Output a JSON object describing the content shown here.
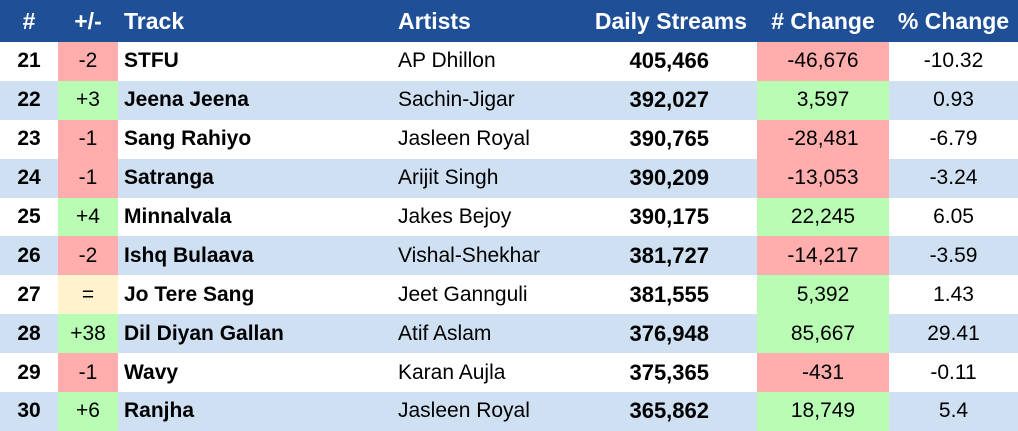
{
  "headers": {
    "rank": "#",
    "move": "+/-",
    "track": "Track",
    "artists": "Artists",
    "daily_streams": "Daily Streams",
    "num_change": "# Change",
    "pct_change": "% Change"
  },
  "status_colors": {
    "header_bg": "#1f4f96",
    "row_alt_bg": "#cfe0f3",
    "negative_bg": "#ffadad",
    "positive_bg": "#b9fcb4",
    "unchanged_bg": "#fff2cc"
  },
  "rows": [
    {
      "rank": "21",
      "move": "-2",
      "track": "STFU",
      "artist": "AP Dhillon",
      "streams": "405,466",
      "change": "-46,676",
      "pct": "-10.32"
    },
    {
      "rank": "22",
      "move": "+3",
      "track": "Jeena Jeena",
      "artist": "Sachin-Jigar",
      "streams": "392,027",
      "change": "3,597",
      "pct": "0.93"
    },
    {
      "rank": "23",
      "move": "-1",
      "track": "Sang Rahiyo",
      "artist": "Jasleen Royal",
      "streams": "390,765",
      "change": "-28,481",
      "pct": "-6.79"
    },
    {
      "rank": "24",
      "move": "-1",
      "track": "Satranga",
      "artist": "Arijit Singh",
      "streams": "390,209",
      "change": "-13,053",
      "pct": "-3.24"
    },
    {
      "rank": "25",
      "move": "+4",
      "track": "Minnalvala",
      "artist": "Jakes Bejoy",
      "streams": "390,175",
      "change": "22,245",
      "pct": "6.05"
    },
    {
      "rank": "26",
      "move": "-2",
      "track": "Ishq Bulaava",
      "artist": "Vishal-Shekhar",
      "streams": "381,727",
      "change": "-14,217",
      "pct": "-3.59"
    },
    {
      "rank": "27",
      "move": "=",
      "track": "Jo Tere Sang",
      "artist": "Jeet Gannguli",
      "streams": "381,555",
      "change": "5,392",
      "pct": "1.43"
    },
    {
      "rank": "28",
      "move": "+38",
      "track": "Dil Diyan Gallan",
      "artist": "Atif Aslam",
      "streams": "376,948",
      "change": "85,667",
      "pct": "29.41"
    },
    {
      "rank": "29",
      "move": "-1",
      "track": "Wavy",
      "artist": "Karan Aujla",
      "streams": "375,365",
      "change": "-431",
      "pct": "-0.11"
    },
    {
      "rank": "30",
      "move": "+6",
      "track": "Ranjha",
      "artist": "Jasleen Royal",
      "streams": "365,862",
      "change": "18,749",
      "pct": "5.4"
    }
  ]
}
